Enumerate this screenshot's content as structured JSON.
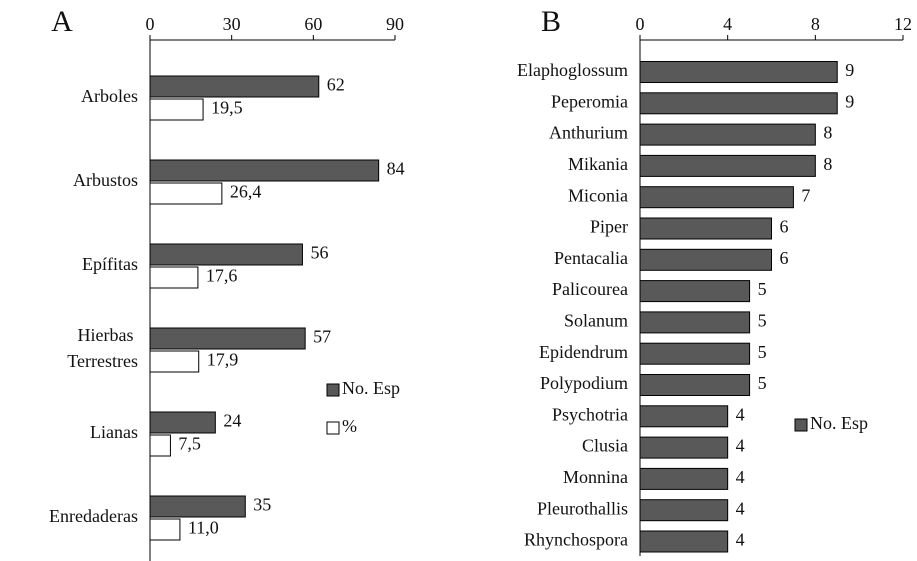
{
  "chart_data": [
    {
      "type": "bar",
      "title": "A",
      "categories": [
        "Arboles",
        "Arbustos",
        "Epífitas",
        "Hierbas Terrestres",
        "Lianas",
        "Enredaderas"
      ],
      "series": [
        {
          "name": "No. Esp",
          "color": "#595959",
          "values": [
            62,
            84,
            56,
            57,
            24,
            35
          ]
        },
        {
          "name": "%",
          "color": "#ffffff",
          "values": [
            19.5,
            26.4,
            17.6,
            17.9,
            7.5,
            11.0
          ],
          "value_labels": [
            "19,5",
            "26,4",
            "17,6",
            "17,9",
            "7,5",
            "11,0"
          ]
        }
      ],
      "xlim": [
        0,
        90
      ],
      "xticks": [
        0,
        30,
        60,
        90
      ]
    },
    {
      "type": "bar",
      "title": "B",
      "categories": [
        "Elaphoglossum",
        "Peperomia",
        "Anthurium",
        "Mikania",
        "Miconia",
        "Piper",
        "Pentacalia",
        "Palicourea",
        "Solanum",
        "Epidendrum",
        "Polypodium",
        "Psychotria",
        "Clusia",
        "Monnina",
        "Pleurothallis",
        "Rhynchospora"
      ],
      "series": [
        {
          "name": "No. Esp",
          "color": "#595959",
          "values": [
            9,
            9,
            8,
            8,
            7,
            6,
            6,
            5,
            5,
            5,
            5,
            4,
            4,
            4,
            4,
            4
          ]
        }
      ],
      "xlim": [
        0,
        12
      ],
      "xticks": [
        0,
        4,
        8,
        12
      ]
    }
  ]
}
